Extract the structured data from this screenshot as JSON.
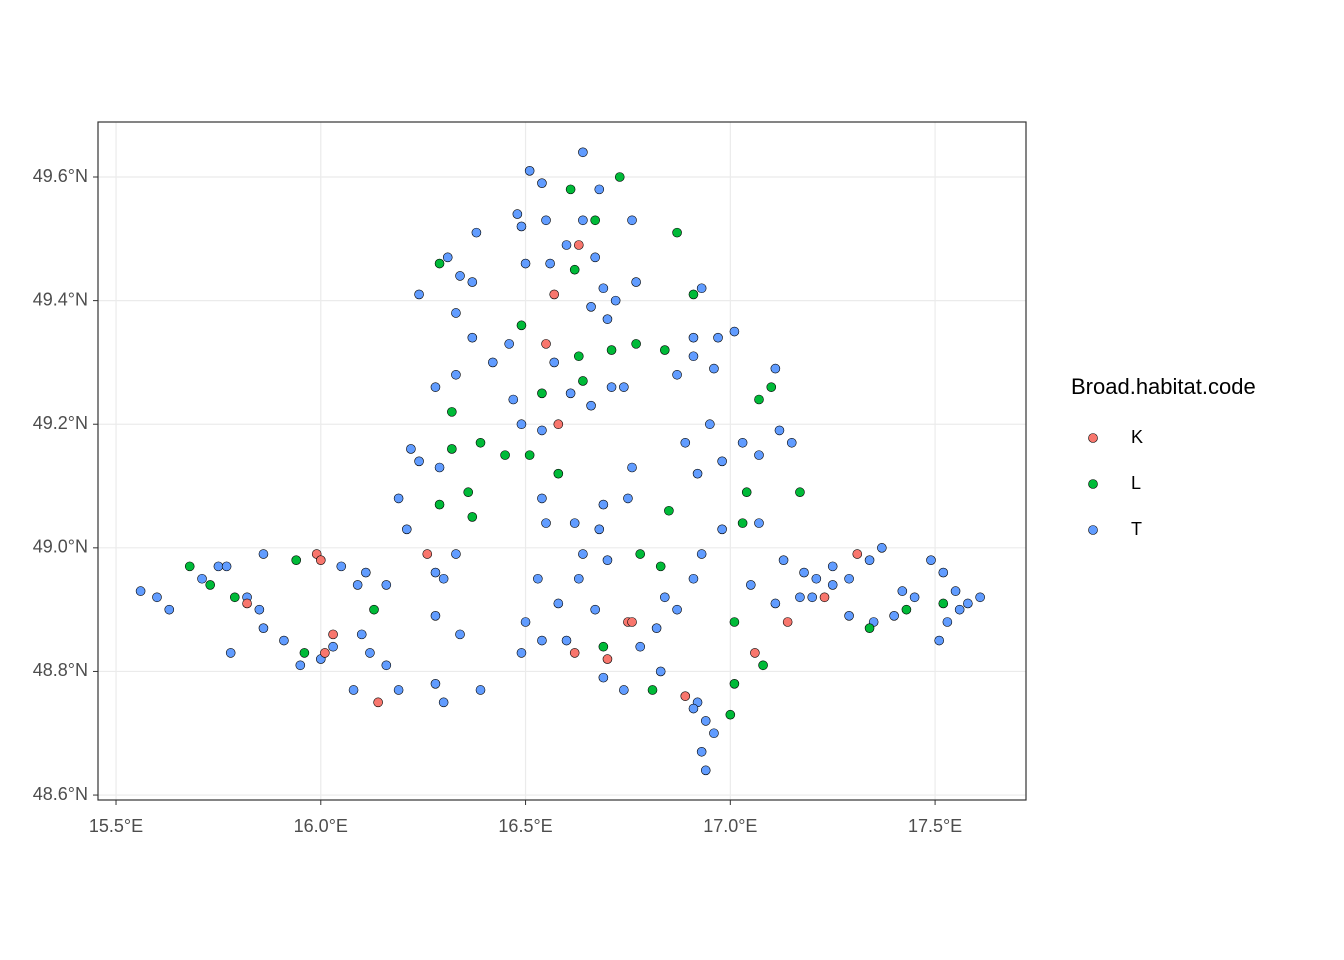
{
  "chart_data": {
    "type": "scatter",
    "legend_title": "Broad.habitat.code",
    "legend_position": "right",
    "grid": true,
    "xlim": [
      15.456,
      17.722
    ],
    "ylim": [
      48.592,
      49.689
    ],
    "xticks": [
      {
        "value": 15.5,
        "label": "15.5°E"
      },
      {
        "value": 16.0,
        "label": "16.0°E"
      },
      {
        "value": 16.5,
        "label": "16.5°E"
      },
      {
        "value": 17.0,
        "label": "17.0°E"
      },
      {
        "value": 17.5,
        "label": "17.5°E"
      }
    ],
    "yticks": [
      {
        "value": 48.6,
        "label": "48.6°N"
      },
      {
        "value": 48.8,
        "label": "48.8°N"
      },
      {
        "value": 49.0,
        "label": "49.0°N"
      },
      {
        "value": 49.2,
        "label": "49.2°N"
      },
      {
        "value": 49.4,
        "label": "49.4°N"
      },
      {
        "value": 49.6,
        "label": "49.6°N"
      }
    ],
    "series": [
      {
        "name": "T",
        "color": "#619CFF",
        "x": [
          16.64,
          16.51,
          16.54,
          16.48,
          16.49,
          16.55,
          16.64,
          16.68,
          16.76,
          16.6,
          16.67,
          16.69,
          16.72,
          16.66,
          16.77,
          16.7,
          16.5,
          16.56,
          16.24,
          16.31,
          16.34,
          16.37,
          16.33,
          16.37,
          16.42,
          16.46,
          16.38,
          16.28,
          16.33,
          16.57,
          16.61,
          16.66,
          16.71,
          16.74,
          16.87,
          16.91,
          16.97,
          17.01,
          16.96,
          16.93,
          16.91,
          17.11,
          16.47,
          16.54,
          16.49,
          16.22,
          16.24,
          16.29,
          16.19,
          16.21,
          16.28,
          16.3,
          16.33,
          16.54,
          16.55,
          16.62,
          16.69,
          16.76,
          16.75,
          16.64,
          16.68,
          16.89,
          16.95,
          16.92,
          16.98,
          17.03,
          17.07,
          17.12,
          17.15,
          17.07,
          16.98,
          16.93,
          16.91,
          15.56,
          15.6,
          15.63,
          15.71,
          15.75,
          15.77,
          15.82,
          15.85,
          15.86,
          15.91,
          15.95,
          16.0,
          16.03,
          16.05,
          16.09,
          16.11,
          16.16,
          16.1,
          16.12,
          16.16,
          16.08,
          16.19,
          16.28,
          16.34,
          16.3,
          16.39,
          15.86,
          15.78,
          16.28,
          16.5,
          16.49,
          16.54,
          16.58,
          16.67,
          16.69,
          16.74,
          16.78,
          16.82,
          16.84,
          16.87,
          16.92,
          16.94,
          16.93,
          16.94,
          16.96,
          16.91,
          16.63,
          16.6,
          16.53,
          16.7,
          16.83,
          17.05,
          17.11,
          17.13,
          17.18,
          17.21,
          17.25,
          17.29,
          17.34,
          17.37,
          17.2,
          17.25,
          17.29,
          17.35,
          17.4,
          17.45,
          17.52,
          17.55,
          17.58,
          17.53,
          17.51,
          17.49,
          17.56,
          17.61,
          17.42,
          17.17
        ],
        "values": [
          49.64,
          49.61,
          49.59,
          49.54,
          49.52,
          49.53,
          49.53,
          49.58,
          49.53,
          49.49,
          49.47,
          49.42,
          49.4,
          49.39,
          49.43,
          49.37,
          49.46,
          49.46,
          49.41,
          49.47,
          49.44,
          49.43,
          49.38,
          49.34,
          49.3,
          49.33,
          49.51,
          49.26,
          49.28,
          49.3,
          49.25,
          49.23,
          49.26,
          49.26,
          49.28,
          49.31,
          49.34,
          49.35,
          49.29,
          49.42,
          49.34,
          49.29,
          49.24,
          49.19,
          49.2,
          49.16,
          49.14,
          49.13,
          49.08,
          49.03,
          48.96,
          48.95,
          48.99,
          49.08,
          49.04,
          49.04,
          49.07,
          49.13,
          49.08,
          48.99,
          49.03,
          49.17,
          49.2,
          49.12,
          49.14,
          49.17,
          49.15,
          49.19,
          49.17,
          49.04,
          49.03,
          48.99,
          48.95,
          48.93,
          48.92,
          48.9,
          48.95,
          48.97,
          48.97,
          48.92,
          48.9,
          48.87,
          48.85,
          48.81,
          48.82,
          48.84,
          48.97,
          48.94,
          48.96,
          48.94,
          48.86,
          48.83,
          48.81,
          48.77,
          48.77,
          48.78,
          48.86,
          48.75,
          48.77,
          48.99,
          48.83,
          48.89,
          48.88,
          48.83,
          48.85,
          48.91,
          48.9,
          48.79,
          48.77,
          48.84,
          48.87,
          48.92,
          48.9,
          48.75,
          48.72,
          48.67,
          48.64,
          48.7,
          48.74,
          48.95,
          48.85,
          48.95,
          48.98,
          48.8,
          48.94,
          48.91,
          48.98,
          48.96,
          48.95,
          48.97,
          48.95,
          48.98,
          49.0,
          48.92,
          48.94,
          48.89,
          48.88,
          48.89,
          48.92,
          48.96,
          48.93,
          48.91,
          48.88,
          48.85,
          48.98,
          48.9,
          48.92,
          48.93,
          48.92
        ]
      },
      {
        "name": "L",
        "color": "#00BA38",
        "x": [
          16.61,
          16.73,
          16.67,
          16.87,
          16.91,
          16.29,
          16.62,
          16.49,
          16.63,
          16.71,
          16.77,
          16.84,
          16.64,
          16.32,
          16.54,
          16.39,
          16.45,
          16.51,
          16.58,
          16.32,
          16.37,
          16.36,
          16.29,
          16.85,
          16.78,
          16.83,
          17.07,
          17.04,
          17.17,
          17.03,
          15.68,
          15.73,
          15.79,
          15.94,
          15.96,
          16.13,
          17.0,
          17.01,
          17.08,
          17.34,
          17.43,
          17.52,
          16.69,
          16.81,
          17.01,
          17.1
        ],
        "values": [
          49.58,
          49.6,
          49.53,
          49.51,
          49.41,
          49.46,
          49.45,
          49.36,
          49.31,
          49.32,
          49.33,
          49.32,
          49.27,
          49.22,
          49.25,
          49.17,
          49.15,
          49.15,
          49.12,
          49.16,
          49.05,
          49.09,
          49.07,
          49.06,
          48.99,
          48.97,
          49.24,
          49.09,
          49.09,
          49.04,
          48.97,
          48.94,
          48.92,
          48.98,
          48.83,
          48.9,
          48.73,
          48.78,
          48.81,
          48.87,
          48.9,
          48.91,
          48.84,
          48.77,
          48.88,
          49.26
        ]
      },
      {
        "name": "K",
        "color": "#F8766D",
        "x": [
          16.63,
          16.57,
          16.55,
          16.58,
          16.26,
          15.99,
          16.0,
          15.82,
          16.03,
          16.01,
          16.14,
          16.62,
          16.7,
          16.75,
          16.89,
          17.06,
          17.14,
          17.23,
          17.31,
          16.76
        ],
        "values": [
          49.49,
          49.41,
          49.33,
          49.2,
          48.99,
          48.99,
          48.98,
          48.91,
          48.86,
          48.83,
          48.75,
          48.83,
          48.82,
          48.88,
          48.76,
          48.83,
          48.88,
          48.92,
          48.99,
          48.88
        ]
      }
    ]
  }
}
